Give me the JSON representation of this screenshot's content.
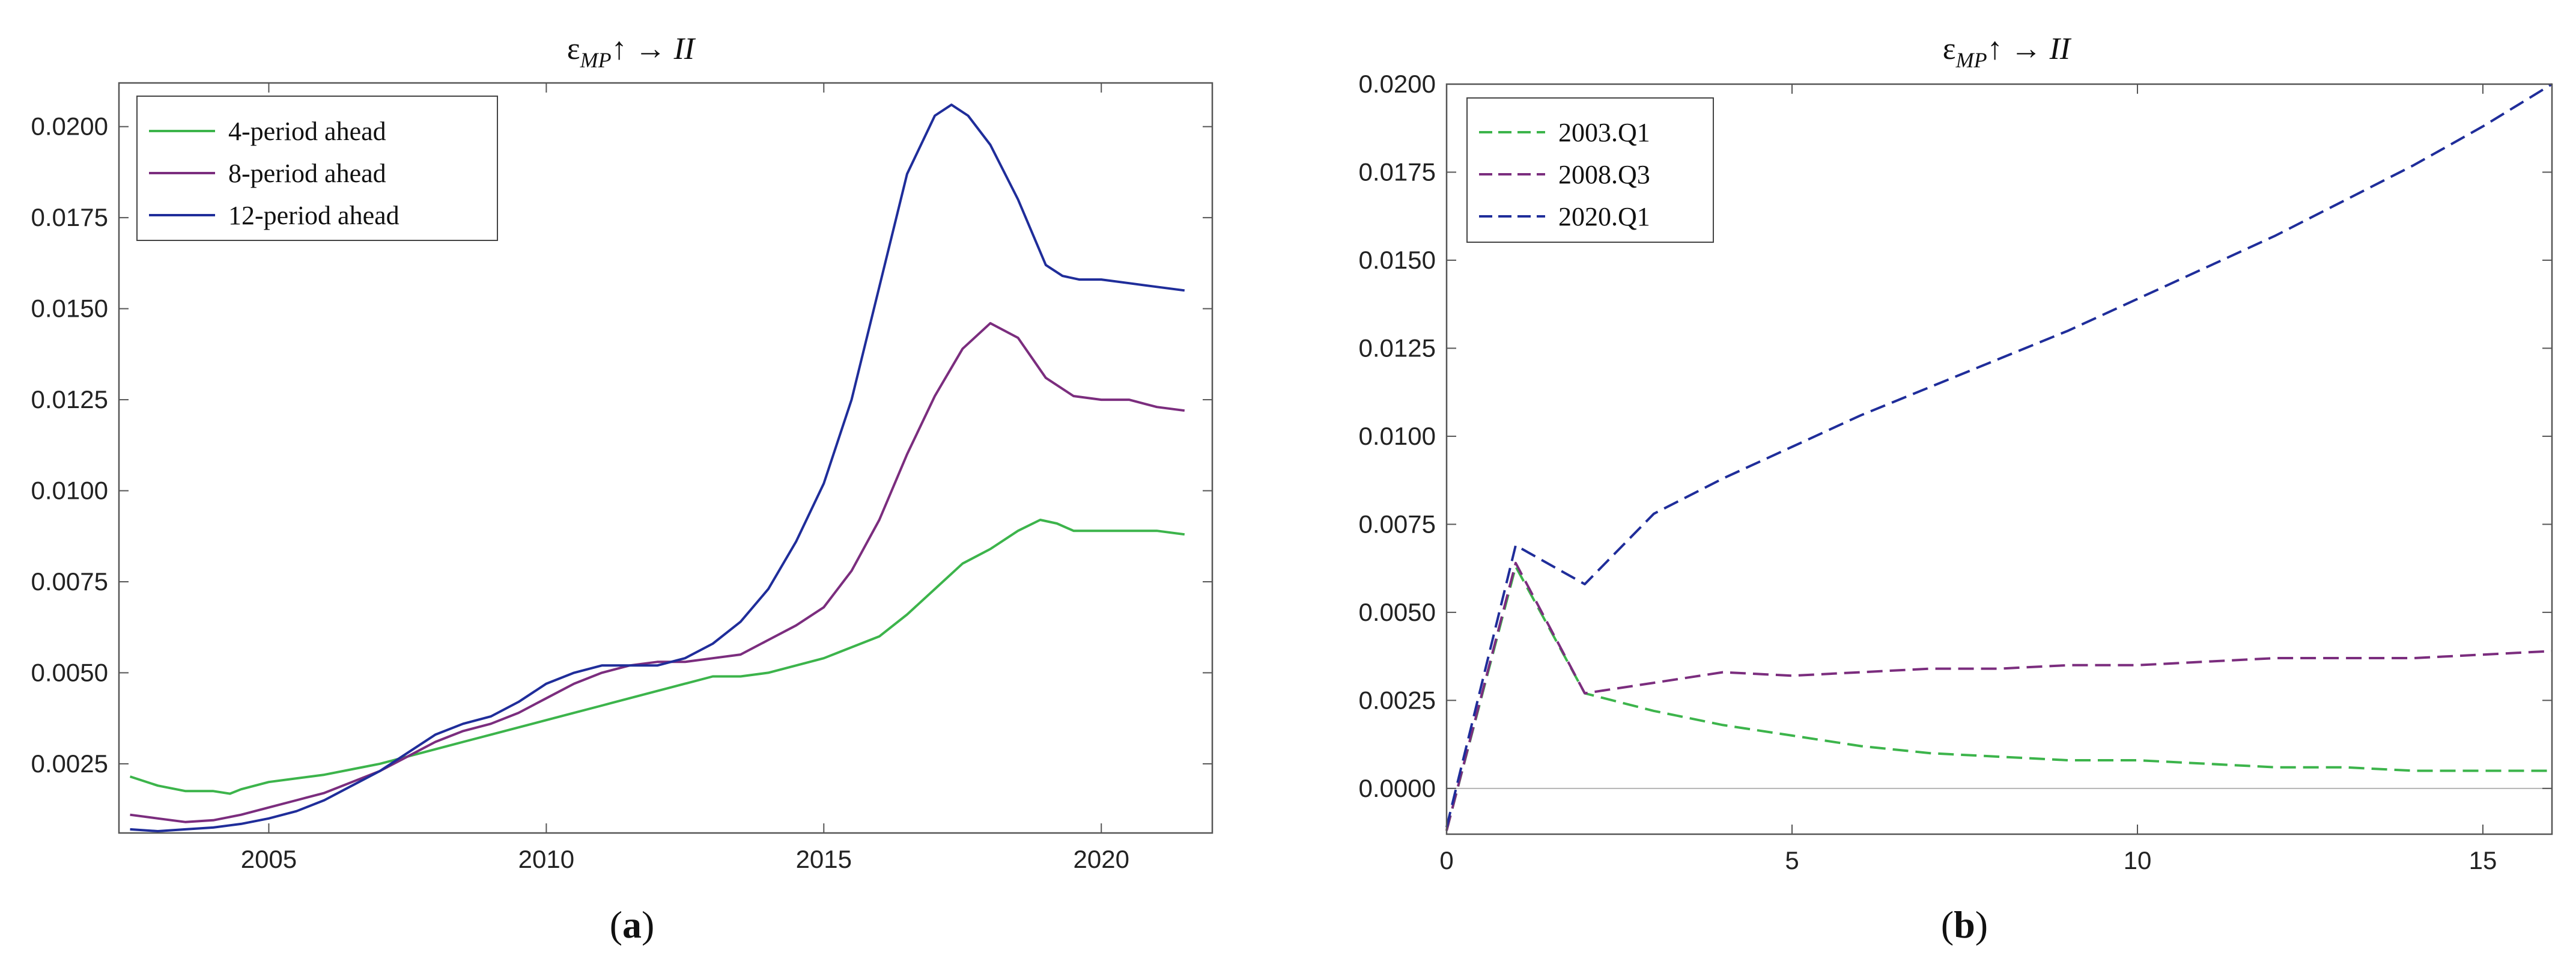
{
  "chart_data": [
    {
      "id": "a",
      "type": "line",
      "title": "ε_MP↑ → II",
      "title_parts": {
        "eps": "ε",
        "sub": "MP",
        "arrows": "↑ → ",
        "var": "II"
      },
      "caption": {
        "open": "(",
        "letter": "a",
        "close": ")"
      },
      "xlabel": "",
      "ylabel": "",
      "xlim": [
        2002.3,
        2022.0
      ],
      "ylim": [
        0.0006,
        0.0212
      ],
      "xticks": [
        2005,
        2010,
        2015,
        2020
      ],
      "xtick_labels": [
        "2005",
        "2010",
        "2015",
        "2020"
      ],
      "yticks": [
        0.0025,
        0.005,
        0.0075,
        0.01,
        0.0125,
        0.015,
        0.0175,
        0.02
      ],
      "ytick_labels": [
        "0.0025",
        "0.0050",
        "0.0075",
        "0.0100",
        "0.0125",
        "0.0150",
        "0.0175",
        "0.0200"
      ],
      "legend_position": "top-left",
      "series": [
        {
          "name": "4-period ahead",
          "color": "#3cb44b",
          "dash": "solid",
          "x": [
            2002.5,
            2003.0,
            2003.5,
            2004.0,
            2004.3,
            2004.5,
            2005.0,
            2005.5,
            2006.0,
            2006.5,
            2007.0,
            2007.5,
            2008.0,
            2008.5,
            2009.0,
            2009.5,
            2010.0,
            2010.5,
            2011.0,
            2011.5,
            2012.0,
            2012.5,
            2013.0,
            2013.5,
            2014.0,
            2014.5,
            2015.0,
            2015.5,
            2016.0,
            2016.5,
            2017.0,
            2017.5,
            2018.0,
            2018.5,
            2018.9,
            2019.2,
            2019.5,
            2020.0,
            2020.5,
            2021.0,
            2021.5
          ],
          "values": [
            0.00215,
            0.0019,
            0.00175,
            0.00175,
            0.00168,
            0.0018,
            0.002,
            0.0021,
            0.0022,
            0.00235,
            0.0025,
            0.0027,
            0.0029,
            0.0031,
            0.0033,
            0.0035,
            0.0037,
            0.0039,
            0.0041,
            0.0043,
            0.0045,
            0.0047,
            0.0049,
            0.0049,
            0.005,
            0.0052,
            0.0054,
            0.0057,
            0.006,
            0.0066,
            0.0073,
            0.008,
            0.0084,
            0.0089,
            0.0092,
            0.0091,
            0.0089,
            0.0089,
            0.0089,
            0.0089,
            0.0088
          ]
        },
        {
          "name": "8-period ahead",
          "color": "#7b2d7e",
          "dash": "solid",
          "x": [
            2002.5,
            2003.0,
            2003.5,
            2004.0,
            2004.5,
            2005.0,
            2005.5,
            2006.0,
            2006.5,
            2007.0,
            2007.5,
            2008.0,
            2008.5,
            2009.0,
            2009.5,
            2010.0,
            2010.5,
            2011.0,
            2011.5,
            2012.0,
            2012.5,
            2013.0,
            2013.5,
            2014.0,
            2014.5,
            2015.0,
            2015.5,
            2016.0,
            2016.5,
            2017.0,
            2017.5,
            2018.0,
            2018.5,
            2019.0,
            2019.5,
            2020.0,
            2020.5,
            2021.0,
            2021.5
          ],
          "values": [
            0.0011,
            0.001,
            0.0009,
            0.00095,
            0.0011,
            0.0013,
            0.0015,
            0.0017,
            0.002,
            0.0023,
            0.0027,
            0.0031,
            0.0034,
            0.0036,
            0.0039,
            0.0043,
            0.0047,
            0.005,
            0.0052,
            0.0053,
            0.0053,
            0.0054,
            0.0055,
            0.0059,
            0.0063,
            0.0068,
            0.0078,
            0.0092,
            0.011,
            0.0126,
            0.0139,
            0.0146,
            0.0142,
            0.0131,
            0.0126,
            0.0125,
            0.0125,
            0.0123,
            0.0122
          ]
        },
        {
          "name": "12-period ahead",
          "color": "#1f2d9a",
          "dash": "solid",
          "x": [
            2002.5,
            2003.0,
            2003.5,
            2004.0,
            2004.5,
            2005.0,
            2005.5,
            2006.0,
            2006.5,
            2007.0,
            2007.5,
            2008.0,
            2008.5,
            2009.0,
            2009.5,
            2010.0,
            2010.5,
            2011.0,
            2011.5,
            2012.0,
            2012.5,
            2013.0,
            2013.5,
            2014.0,
            2014.5,
            2015.0,
            2015.5,
            2016.0,
            2016.5,
            2017.0,
            2017.3,
            2017.6,
            2018.0,
            2018.5,
            2019.0,
            2019.3,
            2019.6,
            2020.0,
            2020.5,
            2021.0,
            2021.5
          ],
          "values": [
            0.0007,
            0.00065,
            0.0007,
            0.00075,
            0.00085,
            0.001,
            0.0012,
            0.0015,
            0.0019,
            0.0023,
            0.0028,
            0.0033,
            0.0036,
            0.0038,
            0.0042,
            0.0047,
            0.005,
            0.0052,
            0.0052,
            0.0052,
            0.0054,
            0.0058,
            0.0064,
            0.0073,
            0.0086,
            0.0102,
            0.0125,
            0.0156,
            0.0187,
            0.0203,
            0.0206,
            0.0203,
            0.0195,
            0.018,
            0.0162,
            0.0159,
            0.0158,
            0.0158,
            0.0157,
            0.0156,
            0.0155
          ]
        }
      ]
    },
    {
      "id": "b",
      "type": "line",
      "title": "ε_MP↑ → II",
      "title_parts": {
        "eps": "ε",
        "sub": "MP",
        "arrows": "↑ → ",
        "var": "II"
      },
      "caption": {
        "open": "(",
        "letter": "b",
        "close": ")"
      },
      "xlabel": "",
      "ylabel": "",
      "xlim": [
        0,
        16
      ],
      "ylim": [
        -0.0013,
        0.02
      ],
      "xticks": [
        0,
        5,
        10,
        15
      ],
      "xtick_labels": [
        "0",
        "5",
        "10",
        "15"
      ],
      "yticks": [
        0,
        0.0025,
        0.005,
        0.0075,
        0.01,
        0.0125,
        0.015,
        0.0175,
        0.02
      ],
      "ytick_labels": [
        "0.0000",
        "0.0025",
        "0.0050",
        "0.0075",
        "0.0100",
        "0.0125",
        "0.0150",
        "0.0175",
        "0.0200"
      ],
      "zero_line": true,
      "legend_position": "top-left",
      "series": [
        {
          "name": "2003.Q1",
          "color": "#3cb44b",
          "dash": "dashed",
          "x": [
            0,
            1,
            2,
            3,
            4,
            5,
            6,
            7,
            8,
            9,
            10,
            11,
            12,
            13,
            14,
            15,
            16
          ],
          "values": [
            -0.0012,
            0.0063,
            0.0027,
            0.0022,
            0.0018,
            0.0015,
            0.0012,
            0.001,
            0.0009,
            0.0008,
            0.0008,
            0.0007,
            0.0006,
            0.0006,
            0.0005,
            0.0005,
            0.0005
          ]
        },
        {
          "name": "2008.Q3",
          "color": "#7b2d7e",
          "dash": "dashed",
          "x": [
            0,
            1,
            2,
            3,
            4,
            5,
            6,
            7,
            8,
            9,
            10,
            11,
            12,
            13,
            14,
            15,
            16
          ],
          "values": [
            -0.0012,
            0.0064,
            0.0027,
            0.003,
            0.0033,
            0.0032,
            0.0033,
            0.0034,
            0.0034,
            0.0035,
            0.0035,
            0.0036,
            0.0037,
            0.0037,
            0.0037,
            0.0038,
            0.0039
          ]
        },
        {
          "name": "2020.Q1",
          "color": "#1f2d9a",
          "dash": "dashed",
          "x": [
            0,
            1,
            2,
            3,
            4,
            5,
            6,
            7,
            8,
            9,
            10,
            11,
            12,
            13,
            14,
            15,
            16
          ],
          "values": [
            -0.0011,
            0.0069,
            0.0058,
            0.0078,
            0.0088,
            0.0097,
            0.0106,
            0.0114,
            0.0122,
            0.013,
            0.0139,
            0.0148,
            0.0157,
            0.0167,
            0.0177,
            0.0188,
            0.02
          ]
        }
      ]
    }
  ]
}
